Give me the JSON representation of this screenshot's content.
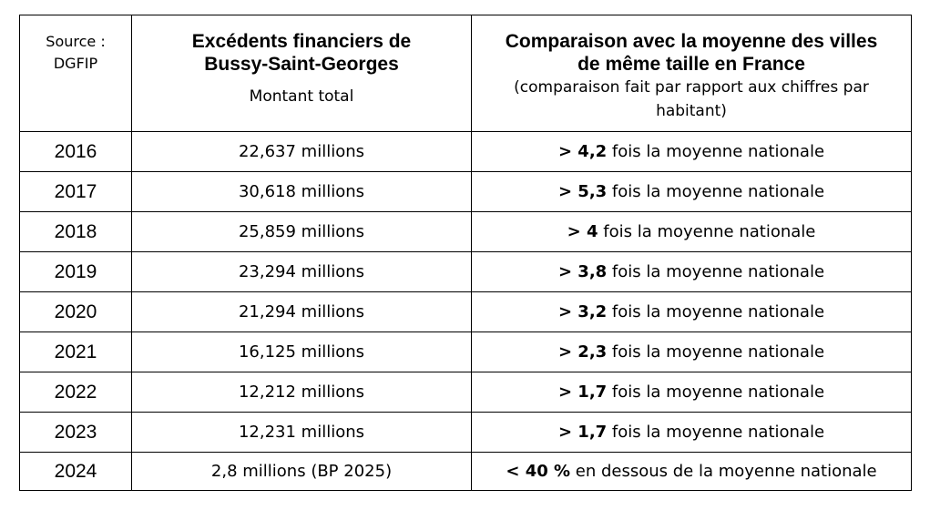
{
  "header": {
    "source": "Source : DGFIP",
    "col2_title": "Excédents financiers de Bussy-Saint-Georges",
    "col2_subtitle": "Montant total",
    "col3_title": "Comparaison avec la moyenne des villes de même taille en France",
    "col3_subtitle": "(comparaison fait par rapport aux chiffres par habitant)"
  },
  "rows": [
    {
      "year": "2016",
      "amount": "22,637 millions",
      "cmp_bold": "> 4,2",
      "cmp_text": " fois la moyenne nationale"
    },
    {
      "year": "2017",
      "amount": "30,618 millions",
      "cmp_bold": "> 5,3",
      "cmp_text": " fois la moyenne nationale"
    },
    {
      "year": "2018",
      "amount": "25,859 millions",
      "cmp_bold": "> 4",
      "cmp_text": " fois la moyenne nationale"
    },
    {
      "year": "2019",
      "amount": "23,294 millions",
      "cmp_bold": "> 3,8",
      "cmp_text": " fois la moyenne nationale"
    },
    {
      "year": "2020",
      "amount": "21,294 millions",
      "cmp_bold": "> 3,2",
      "cmp_text": " fois la moyenne nationale"
    },
    {
      "year": "2021",
      "amount": "16,125 millions",
      "cmp_bold": "> 2,3",
      "cmp_text": " fois la moyenne nationale"
    },
    {
      "year": "2022",
      "amount": "12,212 millions",
      "cmp_bold": "> 1,7",
      "cmp_text": " fois la moyenne nationale"
    },
    {
      "year": "2023",
      "amount": "12,231 millions",
      "cmp_bold": "> 1,7",
      "cmp_text": " fois la moyenne nationale"
    },
    {
      "year": "2024",
      "amount": "2,8 millions (BP 2025)",
      "cmp_bold": "< 40 %",
      "cmp_text": " en dessous de la moyenne nationale"
    }
  ]
}
